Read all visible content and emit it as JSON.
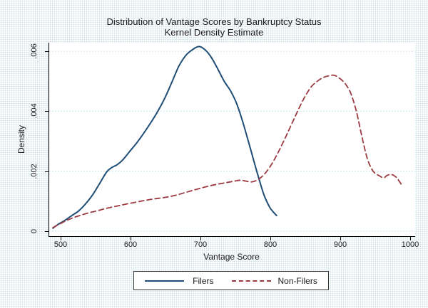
{
  "chart_data": {
    "type": "line",
    "title": "Distribution of Vantage Scores by Bankruptcy Status",
    "subtitle": "Kernel Density Estimate",
    "xlabel": "Vantage Score",
    "ylabel": "Density",
    "xlim": [
      483,
      1006
    ],
    "ylim": [
      -0.00017,
      0.0063
    ],
    "grid": "horizontal-dotted",
    "gridline_color": "#b5dce8",
    "legend_position": "bottom-center",
    "x_ticks": [
      500,
      600,
      700,
      800,
      900,
      1000
    ],
    "y_ticks": [
      {
        "label": "0",
        "value": 0
      },
      {
        "label": ".002",
        "value": 0.002
      },
      {
        "label": ".004",
        "value": 0.004
      },
      {
        "label": ".006",
        "value": 0.006
      }
    ],
    "series": [
      {
        "name": "Filers",
        "style": "solid",
        "color": "#1f4d75",
        "points": [
          [
            488,
            0.0001
          ],
          [
            495,
            0.00022
          ],
          [
            505,
            0.00036
          ],
          [
            515,
            0.00052
          ],
          [
            525,
            0.00068
          ],
          [
            535,
            0.00092
          ],
          [
            545,
            0.00122
          ],
          [
            555,
            0.0016
          ],
          [
            565,
            0.00198
          ],
          [
            572,
            0.00212
          ],
          [
            580,
            0.00222
          ],
          [
            588,
            0.00238
          ],
          [
            597,
            0.00264
          ],
          [
            607,
            0.00292
          ],
          [
            617,
            0.00324
          ],
          [
            628,
            0.00362
          ],
          [
            638,
            0.004
          ],
          [
            648,
            0.00444
          ],
          [
            658,
            0.00496
          ],
          [
            668,
            0.0055
          ],
          [
            678,
            0.00586
          ],
          [
            688,
            0.00606
          ],
          [
            697,
            0.00616
          ],
          [
            706,
            0.00604
          ],
          [
            715,
            0.00578
          ],
          [
            724,
            0.0054
          ],
          [
            733,
            0.005
          ],
          [
            742,
            0.00468
          ],
          [
            750,
            0.0043
          ],
          [
            758,
            0.00376
          ],
          [
            766,
            0.00312
          ],
          [
            774,
            0.00246
          ],
          [
            782,
            0.0018
          ],
          [
            790,
            0.0012
          ],
          [
            798,
            0.0008
          ],
          [
            804,
            0.00062
          ],
          [
            808,
            0.00052
          ]
        ]
      },
      {
        "name": "Non-Filers",
        "style": "dashed",
        "color": "#9b3a40",
        "points": [
          [
            488,
            0.00012
          ],
          [
            496,
            0.00022
          ],
          [
            506,
            0.00034
          ],
          [
            516,
            0.00044
          ],
          [
            526,
            0.00052
          ],
          [
            536,
            0.00059
          ],
          [
            546,
            0.00065
          ],
          [
            556,
            0.00071
          ],
          [
            566,
            0.00077
          ],
          [
            578,
            0.00083
          ],
          [
            590,
            0.00089
          ],
          [
            603,
            0.00095
          ],
          [
            616,
            0.00101
          ],
          [
            628,
            0.00106
          ],
          [
            640,
            0.0011
          ],
          [
            652,
            0.00114
          ],
          [
            664,
            0.0012
          ],
          [
            676,
            0.00128
          ],
          [
            688,
            0.00136
          ],
          [
            700,
            0.00144
          ],
          [
            712,
            0.00151
          ],
          [
            724,
            0.00157
          ],
          [
            736,
            0.00162
          ],
          [
            748,
            0.00167
          ],
          [
            756,
            0.0017
          ],
          [
            764,
            0.00167
          ],
          [
            771,
            0.00164
          ],
          [
            778,
            0.00168
          ],
          [
            786,
            0.0018
          ],
          [
            794,
            0.002
          ],
          [
            802,
            0.00228
          ],
          [
            810,
            0.00262
          ],
          [
            818,
            0.003
          ],
          [
            826,
            0.0034
          ],
          [
            834,
            0.0038
          ],
          [
            842,
            0.0042
          ],
          [
            850,
            0.00455
          ],
          [
            858,
            0.00483
          ],
          [
            866,
            0.005
          ],
          [
            874,
            0.00512
          ],
          [
            882,
            0.00518
          ],
          [
            890,
            0.0052
          ],
          [
            898,
            0.0051
          ],
          [
            906,
            0.00492
          ],
          [
            914,
            0.0046
          ],
          [
            922,
            0.004
          ],
          [
            930,
            0.00315
          ],
          [
            938,
            0.0024
          ],
          [
            946,
            0.002
          ],
          [
            954,
            0.00186
          ],
          [
            961,
            0.00178
          ],
          [
            966,
            0.00186
          ],
          [
            972,
            0.00189
          ],
          [
            978,
            0.00182
          ],
          [
            983,
            0.00168
          ],
          [
            988,
            0.0015
          ]
        ]
      }
    ]
  },
  "legend": {
    "items": [
      {
        "label": "Filers"
      },
      {
        "label": "Non-Filers"
      }
    ]
  }
}
